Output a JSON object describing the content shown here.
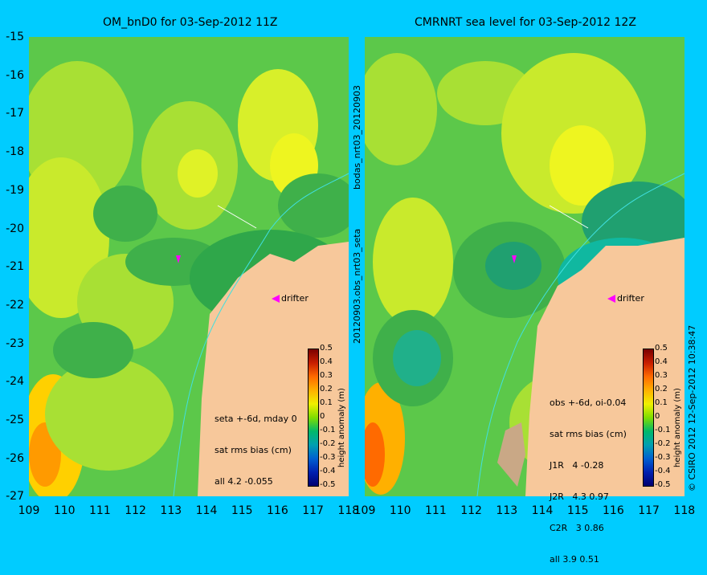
{
  "left_panel": {
    "title": "OM_bnD0 for 03-Sep-2012 11Z",
    "annotation": [
      "seta +-6d, mday 0",
      "sat rms bias (cm)",
      "all 4.2 -0.055"
    ],
    "drifter_label": "drifter"
  },
  "right_panel": {
    "title": "CMRNRT sea level  for 03-Sep-2012 12Z",
    "annotation": [
      "obs +-6d, oi-0.04",
      "sat rms bias (cm)",
      "J1R   4 -0.28",
      "J2R   4.3 0.97",
      "C2R   3 0.86",
      "all 3.9 0.51"
    ],
    "drifter_label": "drifter"
  },
  "side_text": {
    "middle_upper": "bodas_nrt03_20120903",
    "middle_lower": "20120903.obs_nrt03_seta",
    "right_edge": "© CSIRO 2012   12-Sep-2012 10:38:47"
  },
  "colorbar": {
    "label": "height anomaly (m)",
    "ticks": [
      "0.5",
      "0.4",
      "0.3",
      "0.2",
      "0.1",
      "0",
      "-0.1",
      "-0.2",
      "-0.3",
      "-0.4",
      "-0.5"
    ]
  },
  "axes": {
    "lat_ticks": [
      "-15",
      "-16",
      "-17",
      "-18",
      "-19",
      "-20",
      "-21",
      "-22",
      "-23",
      "-24",
      "-25",
      "-26",
      "-27"
    ],
    "lon_ticks_left": [
      "109",
      "110",
      "111",
      "112",
      "113",
      "114",
      "115",
      "116",
      "117",
      "118"
    ],
    "lon_ticks_right": [
      "109",
      "110",
      "111",
      "112",
      "113",
      "114",
      "115",
      "116",
      "117",
      "118"
    ]
  },
  "colors": {
    "background": "#00ccff",
    "land": "#f7c89b",
    "sea_green": "#5cc84a",
    "sea_yellow": "#d8ef2a",
    "drifter": "#ff00ff"
  }
}
